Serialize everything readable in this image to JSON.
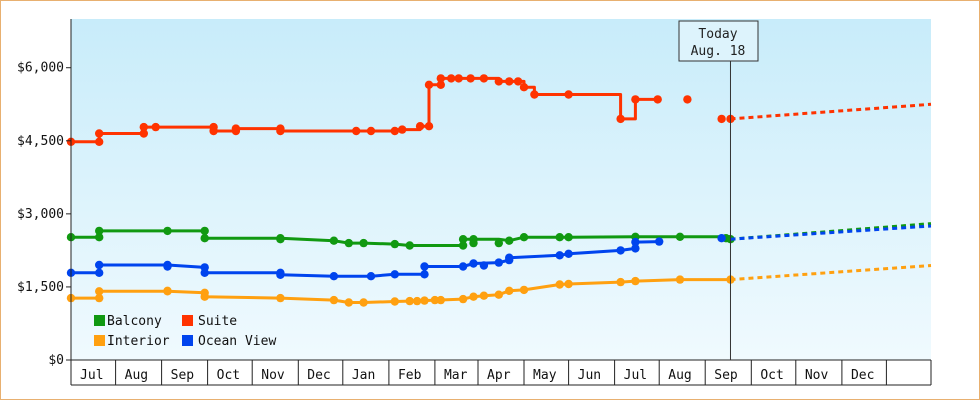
{
  "chart_data": {
    "type": "line",
    "y_ticks": [
      "$0",
      "$1,500",
      "$3,000",
      "$4,500",
      "$6,000"
    ],
    "ylim": [
      0,
      7000
    ],
    "month_labels": [
      "Jul",
      "Aug",
      "Sep",
      "Oct",
      "Nov",
      "Dec",
      "Jan",
      "Feb",
      "Mar",
      "Apr",
      "May",
      "Jun",
      "Jul",
      "Aug",
      "Sep",
      "Oct",
      "Nov",
      "Dec"
    ],
    "x_range": [
      "2023-06-01",
      "2024-12-31"
    ],
    "today": {
      "label_line1": "Today",
      "label_line2": "Aug. 18",
      "date": "2024-08-18"
    },
    "gradient": {
      "top": "#c8ecfa",
      "bottom": "#f0fafe"
    },
    "legend": {
      "position": "bottom-left"
    },
    "series": [
      {
        "name": "Suite",
        "color": "#ff3300",
        "points": [
          [
            "2023-06-01",
            4480
          ],
          [
            "2023-06-20",
            4480
          ],
          [
            "2023-06-20",
            4650
          ],
          [
            "2023-07-20",
            4650
          ],
          [
            "2023-07-20",
            4780
          ],
          [
            "2023-07-28",
            4780
          ],
          [
            "2023-08-15",
            4780
          ],
          [
            "2023-09-05",
            4780
          ],
          [
            "2023-09-05",
            4700
          ],
          [
            "2023-09-20",
            4700
          ],
          [
            "2023-09-20",
            4750
          ],
          [
            "2023-10-20",
            4750
          ],
          [
            "2023-10-20",
            4700
          ],
          [
            "2023-12-10",
            4700
          ],
          [
            "2023-12-20",
            4700
          ],
          [
            "2024-01-05",
            4700
          ],
          [
            "2024-01-05",
            4730
          ],
          [
            "2024-01-10",
            4730
          ],
          [
            "2024-01-22",
            4730
          ],
          [
            "2024-01-22",
            4800
          ],
          [
            "2024-01-28",
            4800
          ],
          [
            "2024-01-28",
            5650
          ],
          [
            "2024-02-05",
            5650
          ],
          [
            "2024-02-05",
            5780
          ],
          [
            "2024-02-12",
            5780
          ],
          [
            "2024-02-17",
            5780
          ],
          [
            "2024-02-25",
            5780
          ],
          [
            "2024-03-05",
            5780
          ],
          [
            "2024-03-15",
            5780
          ],
          [
            "2024-03-15",
            5720
          ],
          [
            "2024-03-22",
            5720
          ],
          [
            "2024-03-28",
            5720
          ],
          [
            "2024-04-01",
            5720
          ],
          [
            "2024-04-01",
            5600
          ],
          [
            "2024-04-08",
            5600
          ],
          [
            "2024-04-08",
            5450
          ],
          [
            "2024-05-01",
            5450
          ],
          [
            "2024-06-05",
            5450
          ],
          [
            "2024-06-05",
            4950
          ],
          [
            "2024-06-15",
            4950
          ],
          [
            "2024-06-15",
            5350
          ],
          [
            "2024-06-30",
            5350
          ]
        ],
        "markers": [
          [
            "2023-06-01",
            4480
          ],
          [
            "2023-06-20",
            4480
          ],
          [
            "2023-06-20",
            4650
          ],
          [
            "2023-07-20",
            4650
          ],
          [
            "2023-07-20",
            4780
          ],
          [
            "2023-07-28",
            4780
          ],
          [
            "2023-09-05",
            4780
          ],
          [
            "2023-09-05",
            4700
          ],
          [
            "2023-09-20",
            4700
          ],
          [
            "2023-09-20",
            4750
          ],
          [
            "2023-10-20",
            4750
          ],
          [
            "2023-10-20",
            4700
          ],
          [
            "2023-12-10",
            4700
          ],
          [
            "2023-12-20",
            4700
          ],
          [
            "2024-01-05",
            4700
          ],
          [
            "2024-01-10",
            4730
          ],
          [
            "2024-01-22",
            4800
          ],
          [
            "2024-01-28",
            4800
          ],
          [
            "2024-01-28",
            5650
          ],
          [
            "2024-02-05",
            5650
          ],
          [
            "2024-02-05",
            5780
          ],
          [
            "2024-02-12",
            5780
          ],
          [
            "2024-02-17",
            5780
          ],
          [
            "2024-02-25",
            5780
          ],
          [
            "2024-03-05",
            5780
          ],
          [
            "2024-03-15",
            5720
          ],
          [
            "2024-03-22",
            5720
          ],
          [
            "2024-03-28",
            5720
          ],
          [
            "2024-04-01",
            5600
          ],
          [
            "2024-04-08",
            5450
          ],
          [
            "2024-05-01",
            5450
          ],
          [
            "2024-06-05",
            4950
          ],
          [
            "2024-06-15",
            5350
          ],
          [
            "2024-06-30",
            5350
          ],
          [
            "2024-07-20",
            5350
          ],
          [
            "2024-08-12",
            4950
          ],
          [
            "2024-08-18",
            4950
          ]
        ],
        "projection": [
          [
            "2024-08-18",
            4950
          ],
          [
            "2024-12-31",
            5250
          ]
        ]
      },
      {
        "name": "Balcony",
        "color": "#119911",
        "points": [
          [
            "2023-06-01",
            2520
          ],
          [
            "2023-06-20",
            2520
          ],
          [
            "2023-06-20",
            2650
          ],
          [
            "2023-08-05",
            2650
          ],
          [
            "2023-08-30",
            2650
          ],
          [
            "2023-08-30",
            2500
          ],
          [
            "2023-10-20",
            2500
          ],
          [
            "2023-11-25",
            2450
          ],
          [
            "2023-12-05",
            2400
          ],
          [
            "2023-12-15",
            2400
          ],
          [
            "2024-01-05",
            2380
          ],
          [
            "2024-01-15",
            2350
          ],
          [
            "2024-02-20",
            2350
          ],
          [
            "2024-02-20",
            2480
          ],
          [
            "2024-02-27",
            2480
          ],
          [
            "2024-03-15",
            2480
          ],
          [
            "2024-03-22",
            2450
          ],
          [
            "2024-04-01",
            2520
          ],
          [
            "2024-05-01",
            2520
          ],
          [
            "2024-06-15",
            2530
          ],
          [
            "2024-07-15",
            2530
          ],
          [
            "2024-08-18",
            2530
          ]
        ],
        "markers": [
          [
            "2023-06-01",
            2520
          ],
          [
            "2023-06-20",
            2520
          ],
          [
            "2023-06-20",
            2650
          ],
          [
            "2023-08-05",
            2650
          ],
          [
            "2023-08-30",
            2650
          ],
          [
            "2023-08-30",
            2500
          ],
          [
            "2023-10-20",
            2500
          ],
          [
            "2023-10-20",
            2480
          ],
          [
            "2023-11-25",
            2450
          ],
          [
            "2023-12-05",
            2400
          ],
          [
            "2023-12-15",
            2400
          ],
          [
            "2024-01-05",
            2380
          ],
          [
            "2024-01-15",
            2350
          ],
          [
            "2024-02-20",
            2350
          ],
          [
            "2024-02-20",
            2480
          ],
          [
            "2024-02-27",
            2480
          ],
          [
            "2024-02-27",
            2400
          ],
          [
            "2024-03-15",
            2400
          ],
          [
            "2024-03-22",
            2450
          ],
          [
            "2024-04-01",
            2520
          ],
          [
            "2024-04-25",
            2520
          ],
          [
            "2024-05-01",
            2520
          ],
          [
            "2024-06-15",
            2530
          ],
          [
            "2024-07-15",
            2530
          ],
          [
            "2024-08-15",
            2500
          ],
          [
            "2024-08-18",
            2480
          ]
        ],
        "projection": [
          [
            "2024-08-18",
            2480
          ],
          [
            "2024-12-31",
            2800
          ]
        ]
      },
      {
        "name": "Ocean View",
        "color": "#0044ee",
        "points": [
          [
            "2023-06-01",
            1790
          ],
          [
            "2023-06-20",
            1790
          ],
          [
            "2023-06-20",
            1950
          ],
          [
            "2023-08-05",
            1950
          ],
          [
            "2023-08-30",
            1900
          ],
          [
            "2023-08-30",
            1790
          ],
          [
            "2023-10-20",
            1790
          ],
          [
            "2023-10-20",
            1750
          ],
          [
            "2023-11-25",
            1720
          ],
          [
            "2023-12-20",
            1720
          ],
          [
            "2024-01-05",
            1760
          ],
          [
            "2024-01-15",
            1760
          ],
          [
            "2024-01-25",
            1760
          ],
          [
            "2024-01-25",
            1920
          ],
          [
            "2024-02-20",
            1920
          ],
          [
            "2024-02-27",
            1980
          ],
          [
            "2024-03-15",
            2000
          ],
          [
            "2024-03-22",
            2050
          ],
          [
            "2024-03-22",
            2100
          ],
          [
            "2024-04-25",
            2150
          ],
          [
            "2024-05-01",
            2180
          ],
          [
            "2024-06-05",
            2250
          ],
          [
            "2024-06-15",
            2290
          ],
          [
            "2024-06-15",
            2420
          ],
          [
            "2024-07-01",
            2430
          ]
        ],
        "markers": [
          [
            "2023-06-01",
            1790
          ],
          [
            "2023-06-20",
            1790
          ],
          [
            "2023-06-20",
            1950
          ],
          [
            "2023-08-05",
            1950
          ],
          [
            "2023-08-05",
            1920
          ],
          [
            "2023-08-30",
            1900
          ],
          [
            "2023-08-30",
            1790
          ],
          [
            "2023-10-20",
            1790
          ],
          [
            "2023-10-20",
            1750
          ],
          [
            "2023-11-25",
            1720
          ],
          [
            "2023-12-20",
            1720
          ],
          [
            "2024-01-05",
            1760
          ],
          [
            "2024-01-25",
            1760
          ],
          [
            "2024-01-25",
            1920
          ],
          [
            "2024-02-20",
            1920
          ],
          [
            "2024-02-27",
            1980
          ],
          [
            "2024-03-05",
            1940
          ],
          [
            "2024-03-15",
            2000
          ],
          [
            "2024-03-22",
            2050
          ],
          [
            "2024-03-22",
            2100
          ],
          [
            "2024-04-25",
            2150
          ],
          [
            "2024-05-01",
            2180
          ],
          [
            "2024-06-05",
            2250
          ],
          [
            "2024-06-15",
            2290
          ],
          [
            "2024-06-15",
            2420
          ],
          [
            "2024-07-01",
            2430
          ],
          [
            "2024-08-12",
            2500
          ]
        ],
        "projection": [
          [
            "2024-08-18",
            2480
          ],
          [
            "2024-12-31",
            2750
          ]
        ]
      },
      {
        "name": "Interior",
        "color": "#ffa010",
        "points": [
          [
            "2023-06-01",
            1270
          ],
          [
            "2023-06-20",
            1270
          ],
          [
            "2023-06-20",
            1410
          ],
          [
            "2023-08-05",
            1410
          ],
          [
            "2023-08-30",
            1380
          ],
          [
            "2023-08-30",
            1300
          ],
          [
            "2023-10-20",
            1270
          ],
          [
            "2023-11-25",
            1230
          ],
          [
            "2023-12-05",
            1180
          ],
          [
            "2023-12-15",
            1180
          ],
          [
            "2024-01-05",
            1200
          ],
          [
            "2024-01-15",
            1210
          ],
          [
            "2024-02-20",
            1250
          ],
          [
            "2024-02-27",
            1300
          ],
          [
            "2024-03-05",
            1320
          ],
          [
            "2024-03-15",
            1340
          ],
          [
            "2024-03-22",
            1420
          ],
          [
            "2024-04-01",
            1440
          ],
          [
            "2024-04-25",
            1550
          ],
          [
            "2024-05-01",
            1560
          ],
          [
            "2024-06-05",
            1600
          ],
          [
            "2024-06-15",
            1620
          ],
          [
            "2024-07-15",
            1650
          ],
          [
            "2024-08-18",
            1650
          ]
        ],
        "markers": [
          [
            "2023-06-01",
            1270
          ],
          [
            "2023-06-20",
            1270
          ],
          [
            "2023-06-20",
            1410
          ],
          [
            "2023-08-05",
            1410
          ],
          [
            "2023-08-05",
            1420
          ],
          [
            "2023-08-30",
            1380
          ],
          [
            "2023-08-30",
            1300
          ],
          [
            "2023-10-20",
            1270
          ],
          [
            "2023-11-25",
            1230
          ],
          [
            "2023-12-05",
            1180
          ],
          [
            "2023-12-15",
            1180
          ],
          [
            "2024-01-05",
            1200
          ],
          [
            "2024-01-15",
            1210
          ],
          [
            "2024-01-20",
            1210
          ],
          [
            "2024-01-25",
            1220
          ],
          [
            "2024-02-01",
            1230
          ],
          [
            "2024-02-05",
            1230
          ],
          [
            "2024-02-20",
            1250
          ],
          [
            "2024-02-27",
            1300
          ],
          [
            "2024-03-05",
            1320
          ],
          [
            "2024-03-15",
            1340
          ],
          [
            "2024-03-22",
            1420
          ],
          [
            "2024-04-01",
            1440
          ],
          [
            "2024-04-25",
            1550
          ],
          [
            "2024-05-01",
            1560
          ],
          [
            "2024-06-05",
            1600
          ],
          [
            "2024-06-15",
            1620
          ],
          [
            "2024-07-15",
            1650
          ],
          [
            "2024-08-18",
            1650
          ]
        ],
        "projection": [
          [
            "2024-08-18",
            1650
          ],
          [
            "2024-12-31",
            1940
          ]
        ]
      }
    ]
  },
  "legend_items": [
    {
      "label": "Balcony",
      "color": "#119911"
    },
    {
      "label": "Suite",
      "color": "#ff3300"
    },
    {
      "label": "Interior",
      "color": "#ffa010"
    },
    {
      "label": "Ocean View",
      "color": "#0044ee"
    }
  ]
}
